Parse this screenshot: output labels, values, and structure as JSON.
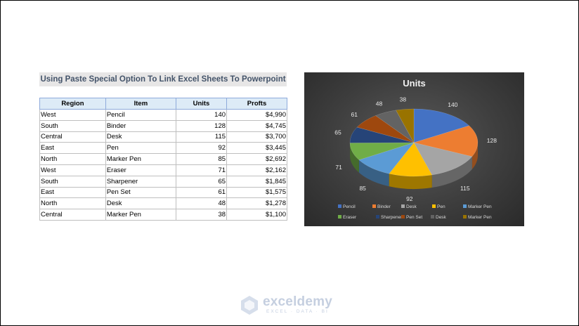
{
  "heading": "Using Paste Special Option To Link Excel Sheets To Powerpoint",
  "table": {
    "headers": [
      "Region",
      "Item",
      "Units",
      "Profts"
    ],
    "rows": [
      [
        "West",
        "Pencil",
        "140",
        "$4,990"
      ],
      [
        "South",
        "Binder",
        "128",
        "$4,745"
      ],
      [
        "Central",
        "Desk",
        "115",
        "$3,700"
      ],
      [
        "East",
        "Pen",
        "92",
        "$3,445"
      ],
      [
        "North",
        "Marker Pen",
        "85",
        "$2,692"
      ],
      [
        "West",
        "Eraser",
        "71",
        "$2,162"
      ],
      [
        "South",
        "Sharpener",
        "65",
        "$1,845"
      ],
      [
        "East",
        "Pen Set",
        "61",
        "$1,575"
      ],
      [
        "North",
        "Desk",
        "48",
        "$1,278"
      ],
      [
        "Central",
        "Marker Pen",
        "38",
        "$1,100"
      ]
    ]
  },
  "chart_data": {
    "type": "pie",
    "title": "Units",
    "categories": [
      "Pencil",
      "Binder",
      "Desk",
      "Pen",
      "Marker Pen",
      "Eraser",
      "Sharpener",
      "Pen Set",
      "Desk",
      "Marker Pen"
    ],
    "values": [
      140,
      128,
      115,
      92,
      85,
      71,
      65,
      61,
      48,
      38
    ],
    "colors": [
      "#4472c4",
      "#ed7d31",
      "#a5a5a5",
      "#ffc000",
      "#5b9bd5",
      "#70ad47",
      "#264478",
      "#9e480e",
      "#636363",
      "#997300"
    ],
    "legend_position": "bottom",
    "style": "3d"
  },
  "watermark": {
    "brand": "exceldemy",
    "tagline": "EXCEL · DATA · BI"
  }
}
